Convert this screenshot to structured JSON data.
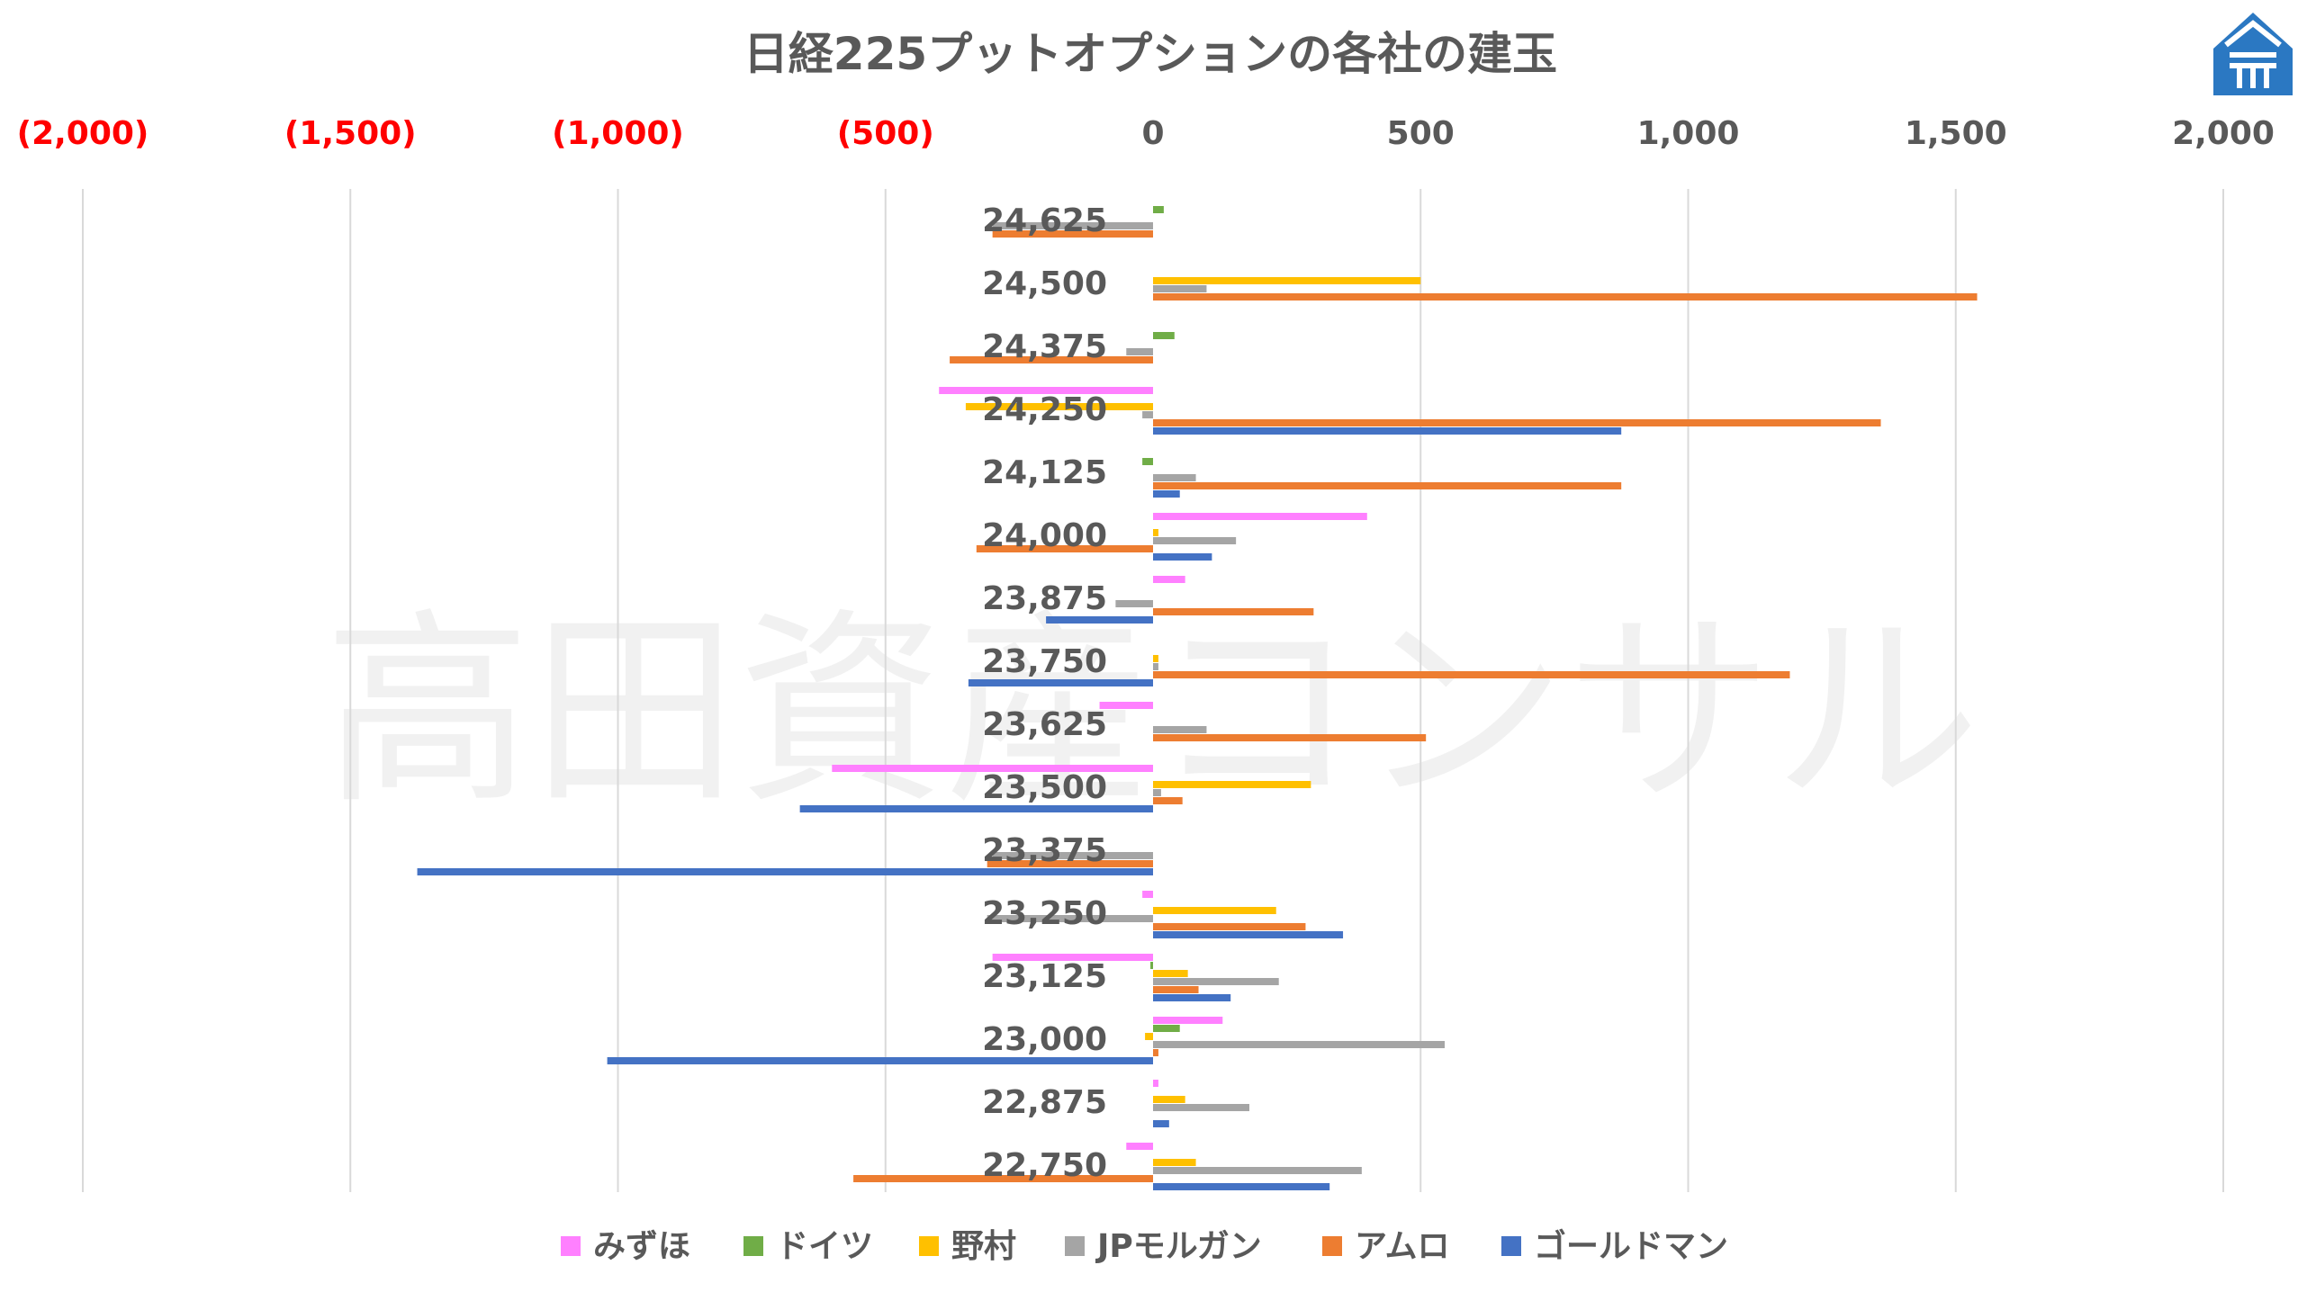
{
  "watermark": "高田資産コンサル",
  "chart_data": {
    "type": "bar",
    "orientation": "horizontal",
    "title": "日経225プットオプションの各社の建玉",
    "categories": [
      "24,625",
      "24,500",
      "24,375",
      "24,250",
      "24,125",
      "24,000",
      "23,875",
      "23,750",
      "23,625",
      "23,500",
      "23,375",
      "23,250",
      "23,125",
      "23,000",
      "22,875",
      "22,750"
    ],
    "xlim": [
      -2000,
      2000
    ],
    "x_ticks": [
      {
        "value": -2000,
        "label": "(2,000)"
      },
      {
        "value": -1500,
        "label": "(1,500)"
      },
      {
        "value": -1000,
        "label": "(1,000)"
      },
      {
        "value": -500,
        "label": "(500)"
      },
      {
        "value": 0,
        "label": "0"
      },
      {
        "value": 500,
        "label": "500"
      },
      {
        "value": 1000,
        "label": "1,000"
      },
      {
        "value": 1500,
        "label": "1,500"
      },
      {
        "value": 2000,
        "label": "2,000"
      }
    ],
    "negative_tick_color": "#ff0000",
    "positive_tick_color": "#595959",
    "grid": "vertical",
    "legend_position": "bottom",
    "series": [
      {
        "name": "みずほ",
        "color": "#ff80ff",
        "values": [
          0,
          0,
          0,
          -400,
          0,
          400,
          60,
          0,
          -100,
          -600,
          0,
          -20,
          -300,
          130,
          10,
          -50
        ]
      },
      {
        "name": "ドイツ",
        "color": "#70ad47",
        "values": [
          20,
          0,
          40,
          0,
          -20,
          0,
          0,
          0,
          0,
          0,
          0,
          0,
          -5,
          50,
          0,
          0
        ]
      },
      {
        "name": "野村",
        "color": "#ffc000",
        "values": [
          0,
          500,
          0,
          -350,
          0,
          10,
          0,
          10,
          0,
          295,
          0,
          230,
          65,
          -15,
          60,
          80
        ]
      },
      {
        "name": "JPモルガン",
        "color": "#a5a5a5",
        "values": [
          -300,
          100,
          -50,
          -20,
          80,
          155,
          -70,
          10,
          100,
          15,
          -300,
          -310,
          235,
          545,
          180,
          390
        ]
      },
      {
        "name": "アムロ",
        "color": "#ed7d31",
        "values": [
          -300,
          1540,
          -380,
          1360,
          875,
          -330,
          300,
          1190,
          510,
          55,
          -310,
          285,
          85,
          10,
          0,
          -560
        ]
      },
      {
        "name": "ゴールドマン",
        "color": "#4472c4",
        "values": [
          0,
          0,
          0,
          875,
          50,
          110,
          -200,
          -345,
          0,
          -660,
          -1375,
          355,
          145,
          -1020,
          30,
          330
        ]
      }
    ]
  }
}
